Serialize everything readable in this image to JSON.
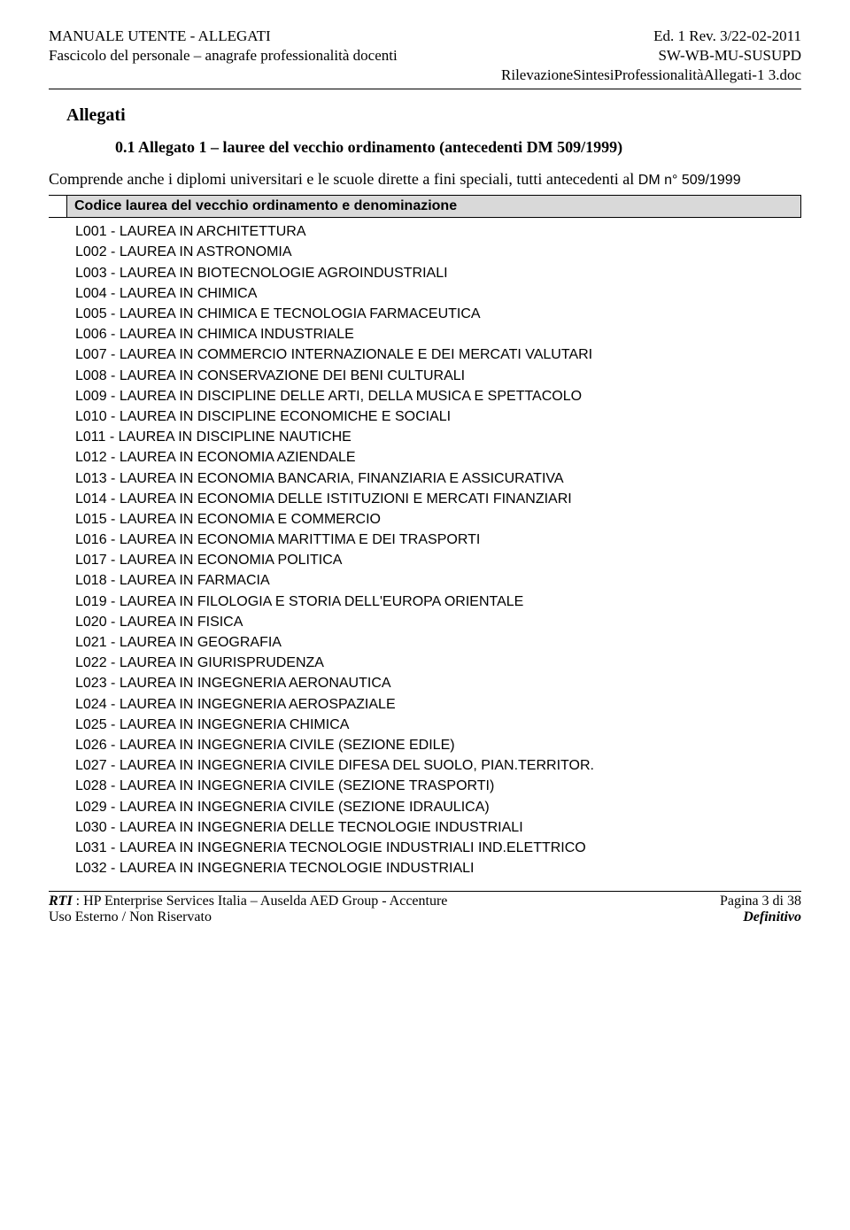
{
  "header": {
    "left1": "MANUALE UTENTE - ALLEGATI",
    "left2": "Fascicolo del personale – anagrafe professionalità docenti",
    "right1": "Ed. 1 Rev. 3/22-02-2011",
    "right2": "SW-WB-MU-SUSUPD",
    "right3": "RilevazioneSintesiProfessionalitàAllegati-1 3.doc"
  },
  "section_title": "Allegati",
  "sub_title": "0.1    Allegato 1 – lauree del vecchio ordinamento (antecedenti DM 509/1999)",
  "intro_plain": "Comprende anche i diplomi universitari e le scuole dirette a fini speciali, tutti antecedenti al ",
  "intro_dm": "DM n° 509/1999",
  "table_header": "Codice laurea del vecchio ordinamento e denominazione",
  "items": [
    "L001 - LAUREA IN ARCHITETTURA",
    "L002 - LAUREA IN ASTRONOMIA",
    "L003 - LAUREA IN BIOTECNOLOGIE AGROINDUSTRIALI",
    "L004 - LAUREA IN CHIMICA",
    "L005 - LAUREA IN CHIMICA E TECNOLOGIA FARMACEUTICA",
    "L006 - LAUREA IN CHIMICA INDUSTRIALE",
    "L007 - LAUREA IN COMMERCIO INTERNAZIONALE E DEI MERCATI VALUTARI",
    "L008 - LAUREA IN CONSERVAZIONE DEI BENI CULTURALI",
    "L009 - LAUREA IN DISCIPLINE DELLE ARTI, DELLA MUSICA E SPETTACOLO",
    "L010 - LAUREA IN DISCIPLINE ECONOMICHE E SOCIALI",
    "L011 - LAUREA IN DISCIPLINE NAUTICHE",
    "L012 - LAUREA IN ECONOMIA AZIENDALE",
    "L013 - LAUREA IN ECONOMIA BANCARIA, FINANZIARIA E ASSICURATIVA",
    "L014 - LAUREA IN ECONOMIA DELLE ISTITUZIONI E MERCATI FINANZIARI",
    "L015 - LAUREA IN ECONOMIA E COMMERCIO",
    "L016 - LAUREA IN ECONOMIA MARITTIMA E DEI TRASPORTI",
    "L017 - LAUREA IN ECONOMIA POLITICA",
    "L018 - LAUREA IN FARMACIA",
    "L019 - LAUREA IN FILOLOGIA E STORIA DELL'EUROPA ORIENTALE",
    "L020 - LAUREA IN FISICA",
    "L021 - LAUREA IN GEOGRAFIA",
    "L022 - LAUREA IN GIURISPRUDENZA",
    "L023 - LAUREA IN INGEGNERIA AERONAUTICA",
    "L024 - LAUREA IN INGEGNERIA AEROSPAZIALE",
    "L025 - LAUREA IN INGEGNERIA CHIMICA",
    "L026 - LAUREA IN INGEGNERIA CIVILE (SEZIONE EDILE)",
    "L027 - LAUREA IN INGEGNERIA CIVILE DIFESA DEL SUOLO, PIAN.TERRITOR.",
    "L028 - LAUREA IN INGEGNERIA CIVILE (SEZIONE TRASPORTI)",
    "L029 - LAUREA IN INGEGNERIA CIVILE (SEZIONE IDRAULICA)",
    "L030 - LAUREA IN INGEGNERIA DELLE TECNOLOGIE INDUSTRIALI",
    "L031 - LAUREA IN INGEGNERIA TECNOLOGIE INDUSTRIALI IND.ELETTRICO",
    "L032 - LAUREA IN INGEGNERIA TECNOLOGIE INDUSTRIALI"
  ],
  "footer": {
    "left1_italic": "RTI",
    "left1_rest": " : HP Enterprise Services Italia – Auselda AED Group - Accenture",
    "left2": "Uso Esterno / Non Riservato",
    "right1": "Pagina 3  di 38",
    "right2": "Definitivo"
  }
}
